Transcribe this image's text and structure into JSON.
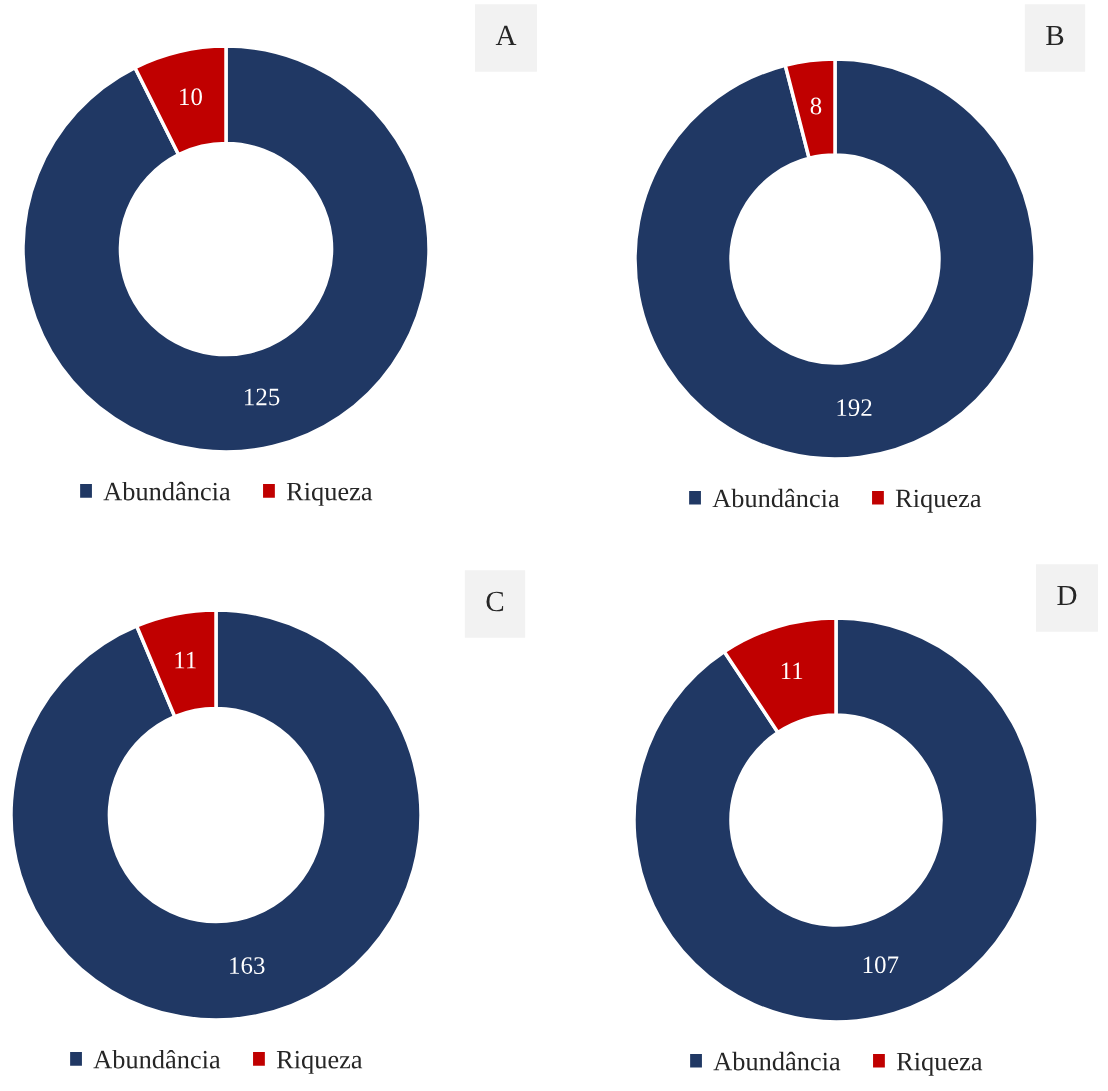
{
  "chart_data": [
    {
      "type": "donut",
      "title": "A",
      "categories": [
        "Abundância",
        "Riqueza"
      ],
      "values": [
        125,
        10
      ],
      "colors": [
        "#203864",
        "#c00000"
      ],
      "data_labels": true,
      "legend": "bottom"
    },
    {
      "type": "donut",
      "title": "B",
      "categories": [
        "Abundância",
        "Riqueza"
      ],
      "values": [
        192,
        8
      ],
      "colors": [
        "#203864",
        "#c00000"
      ],
      "data_labels": true,
      "legend": "bottom"
    },
    {
      "type": "donut",
      "title": "C",
      "categories": [
        "Abundância",
        "Riqueza"
      ],
      "values": [
        163,
        11
      ],
      "colors": [
        "#203864",
        "#c00000"
      ],
      "data_labels": true,
      "legend": "bottom"
    },
    {
      "type": "donut",
      "title": "D",
      "categories": [
        "Abundância",
        "Riqueza"
      ],
      "values": [
        107,
        11
      ],
      "colors": [
        "#203864",
        "#c00000"
      ],
      "data_labels": true,
      "legend": "bottom"
    }
  ]
}
